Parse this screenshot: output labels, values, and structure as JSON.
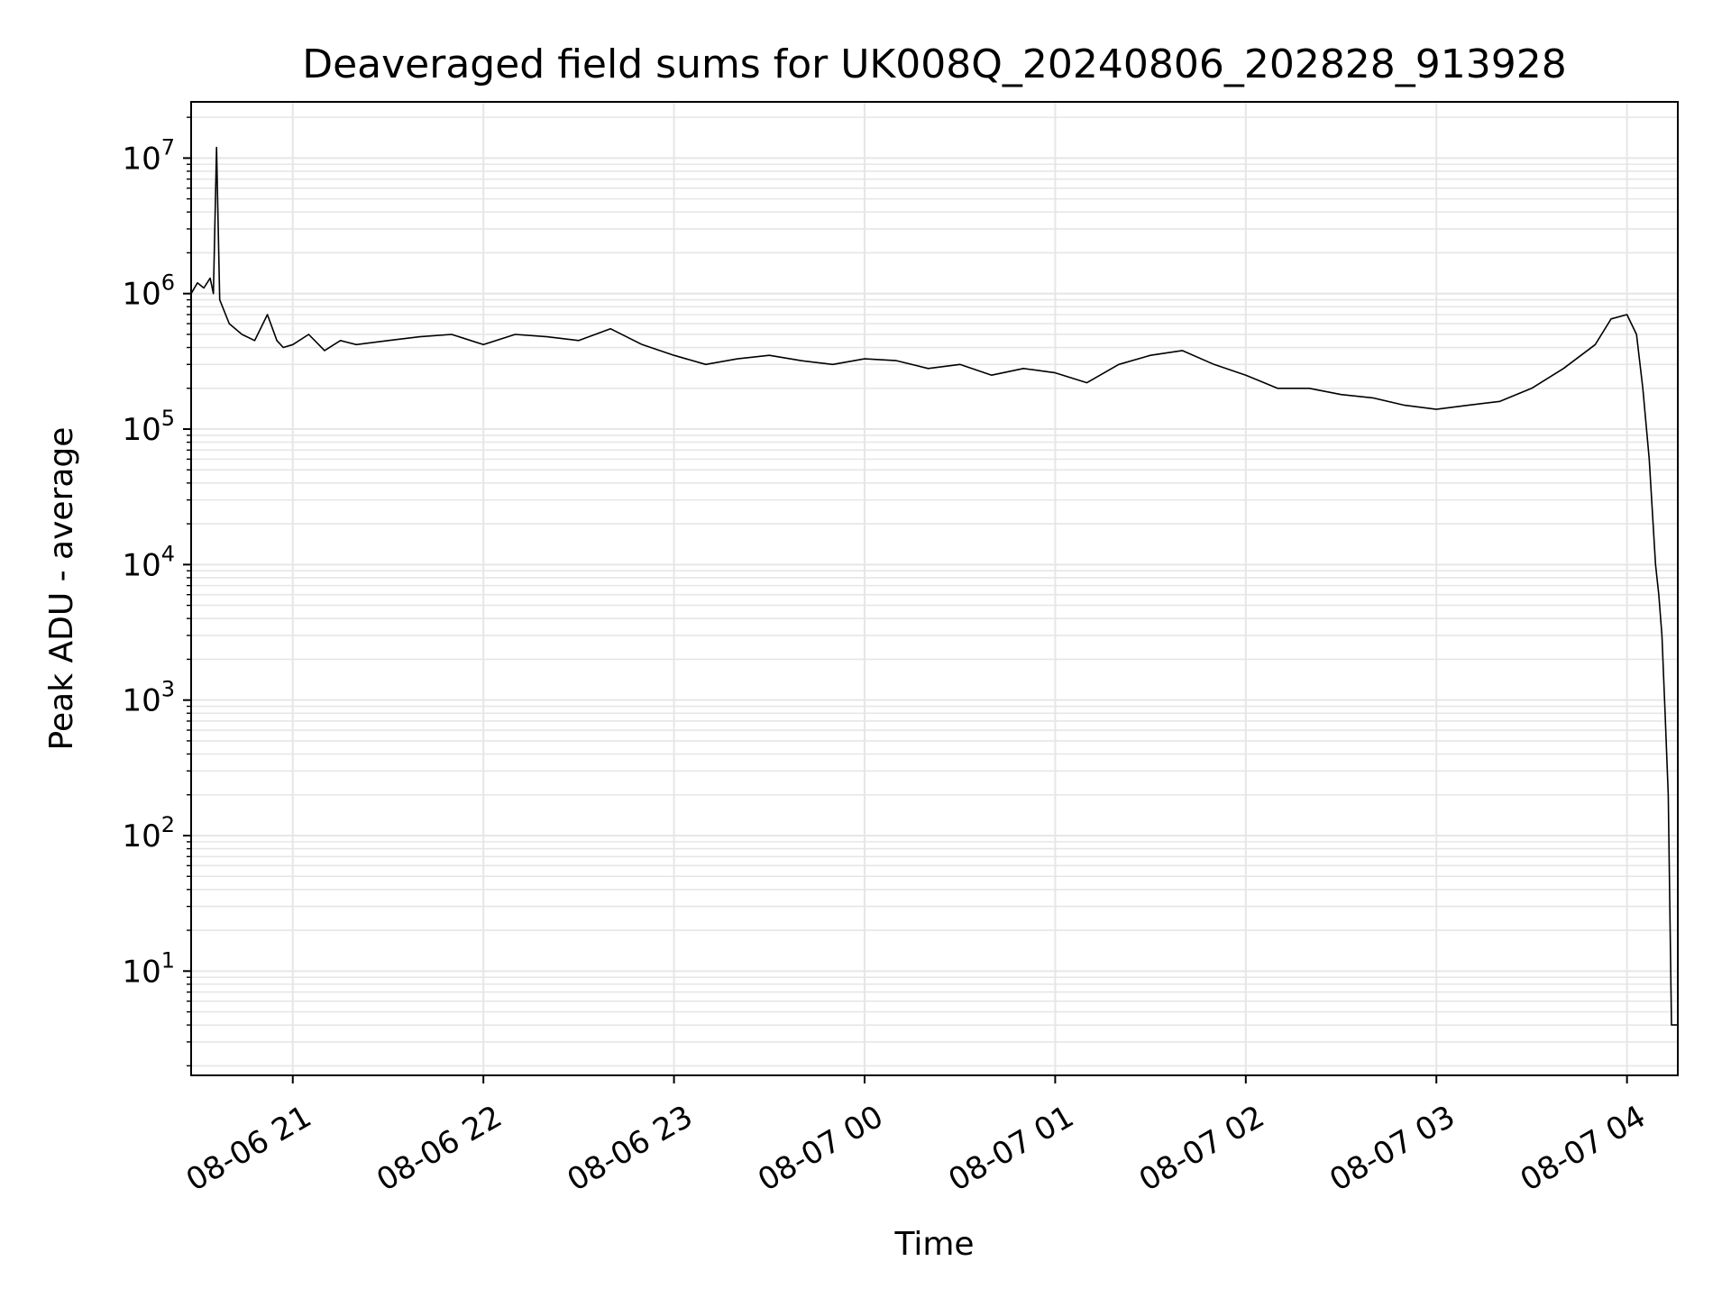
{
  "chart_data": {
    "type": "line",
    "title": "Deaveraged field sums for UK008Q_20240806_202828_913928",
    "xlabel": "Time",
    "ylabel": "Peak ADU - average",
    "yscale": "log",
    "ylim": [
      1.7,
      26000000
    ],
    "xlim": [
      "2024-08-06 20:28",
      "2024-08-07 04:16"
    ],
    "grid": true,
    "grid_color": "#e6e6e6",
    "line_color": "#000000",
    "x_tick_labels": [
      "08-06 21",
      "08-06 22",
      "08-06 23",
      "08-07 00",
      "08-07 01",
      "08-07 02",
      "08-07 03",
      "08-07 04"
    ],
    "x_tick_values": [
      "2024-08-06 21:00",
      "2024-08-06 22:00",
      "2024-08-06 23:00",
      "2024-08-07 00:00",
      "2024-08-07 01:00",
      "2024-08-07 02:00",
      "2024-08-07 03:00",
      "2024-08-07 04:00"
    ],
    "y_ticks": [
      {
        "value": 10,
        "base": "10",
        "exp": "1"
      },
      {
        "value": 100,
        "base": "10",
        "exp": "2"
      },
      {
        "value": 1000,
        "base": "10",
        "exp": "3"
      },
      {
        "value": 10000,
        "base": "10",
        "exp": "4"
      },
      {
        "value": 100000,
        "base": "10",
        "exp": "5"
      },
      {
        "value": 1000000,
        "base": "10",
        "exp": "6"
      },
      {
        "value": 10000000,
        "base": "10",
        "exp": "7"
      }
    ],
    "series": [
      {
        "x": [
          "2024-08-06 20:28",
          "2024-08-06 20:30",
          "2024-08-06 20:32",
          "2024-08-06 20:34",
          "2024-08-06 20:35",
          "2024-08-06 20:36",
          "2024-08-06 20:37",
          "2024-08-06 20:40",
          "2024-08-06 20:44",
          "2024-08-06 20:48",
          "2024-08-06 20:52",
          "2024-08-06 20:55",
          "2024-08-06 20:57",
          "2024-08-06 21:00",
          "2024-08-06 21:05",
          "2024-08-06 21:10",
          "2024-08-06 21:15",
          "2024-08-06 21:20",
          "2024-08-06 21:30",
          "2024-08-06 21:40",
          "2024-08-06 21:50",
          "2024-08-06 22:00",
          "2024-08-06 22:10",
          "2024-08-06 22:20",
          "2024-08-06 22:30",
          "2024-08-06 22:40",
          "2024-08-06 22:50",
          "2024-08-06 23:00",
          "2024-08-06 23:10",
          "2024-08-06 23:20",
          "2024-08-06 23:30",
          "2024-08-06 23:40",
          "2024-08-06 23:50",
          "2024-08-07 00:00",
          "2024-08-07 00:10",
          "2024-08-07 00:20",
          "2024-08-07 00:30",
          "2024-08-07 00:40",
          "2024-08-07 00:50",
          "2024-08-07 01:00",
          "2024-08-07 01:10",
          "2024-08-07 01:20",
          "2024-08-07 01:30",
          "2024-08-07 01:40",
          "2024-08-07 01:50",
          "2024-08-07 02:00",
          "2024-08-07 02:10",
          "2024-08-07 02:20",
          "2024-08-07 02:30",
          "2024-08-07 02:40",
          "2024-08-07 02:50",
          "2024-08-07 03:00",
          "2024-08-07 03:10",
          "2024-08-07 03:20",
          "2024-08-07 03:30",
          "2024-08-07 03:40",
          "2024-08-07 03:50",
          "2024-08-07 03:55",
          "2024-08-07 04:00",
          "2024-08-07 04:03",
          "2024-08-07 04:05",
          "2024-08-07 04:07",
          "2024-08-07 04:09",
          "2024-08-07 04:10",
          "2024-08-07 04:11",
          "2024-08-07 04:12",
          "2024-08-07 04:13",
          "2024-08-07 04:14",
          "2024-08-07 04:16"
        ],
        "y": [
          1000000,
          1200000,
          1100000,
          1300000,
          1000000,
          12000000,
          900000,
          600000,
          500000,
          450000,
          700000,
          450000,
          400000,
          420000,
          500000,
          380000,
          450000,
          420000,
          450000,
          480000,
          500000,
          420000,
          500000,
          480000,
          450000,
          550000,
          420000,
          350000,
          300000,
          330000,
          350000,
          320000,
          300000,
          330000,
          320000,
          280000,
          300000,
          250000,
          280000,
          260000,
          220000,
          300000,
          350000,
          380000,
          300000,
          250000,
          200000,
          200000,
          180000,
          170000,
          150000,
          140000,
          150000,
          160000,
          200000,
          280000,
          420000,
          650000,
          700000,
          500000,
          200000,
          60000,
          10000,
          6000,
          3000,
          800,
          200,
          4,
          4
        ]
      }
    ]
  }
}
